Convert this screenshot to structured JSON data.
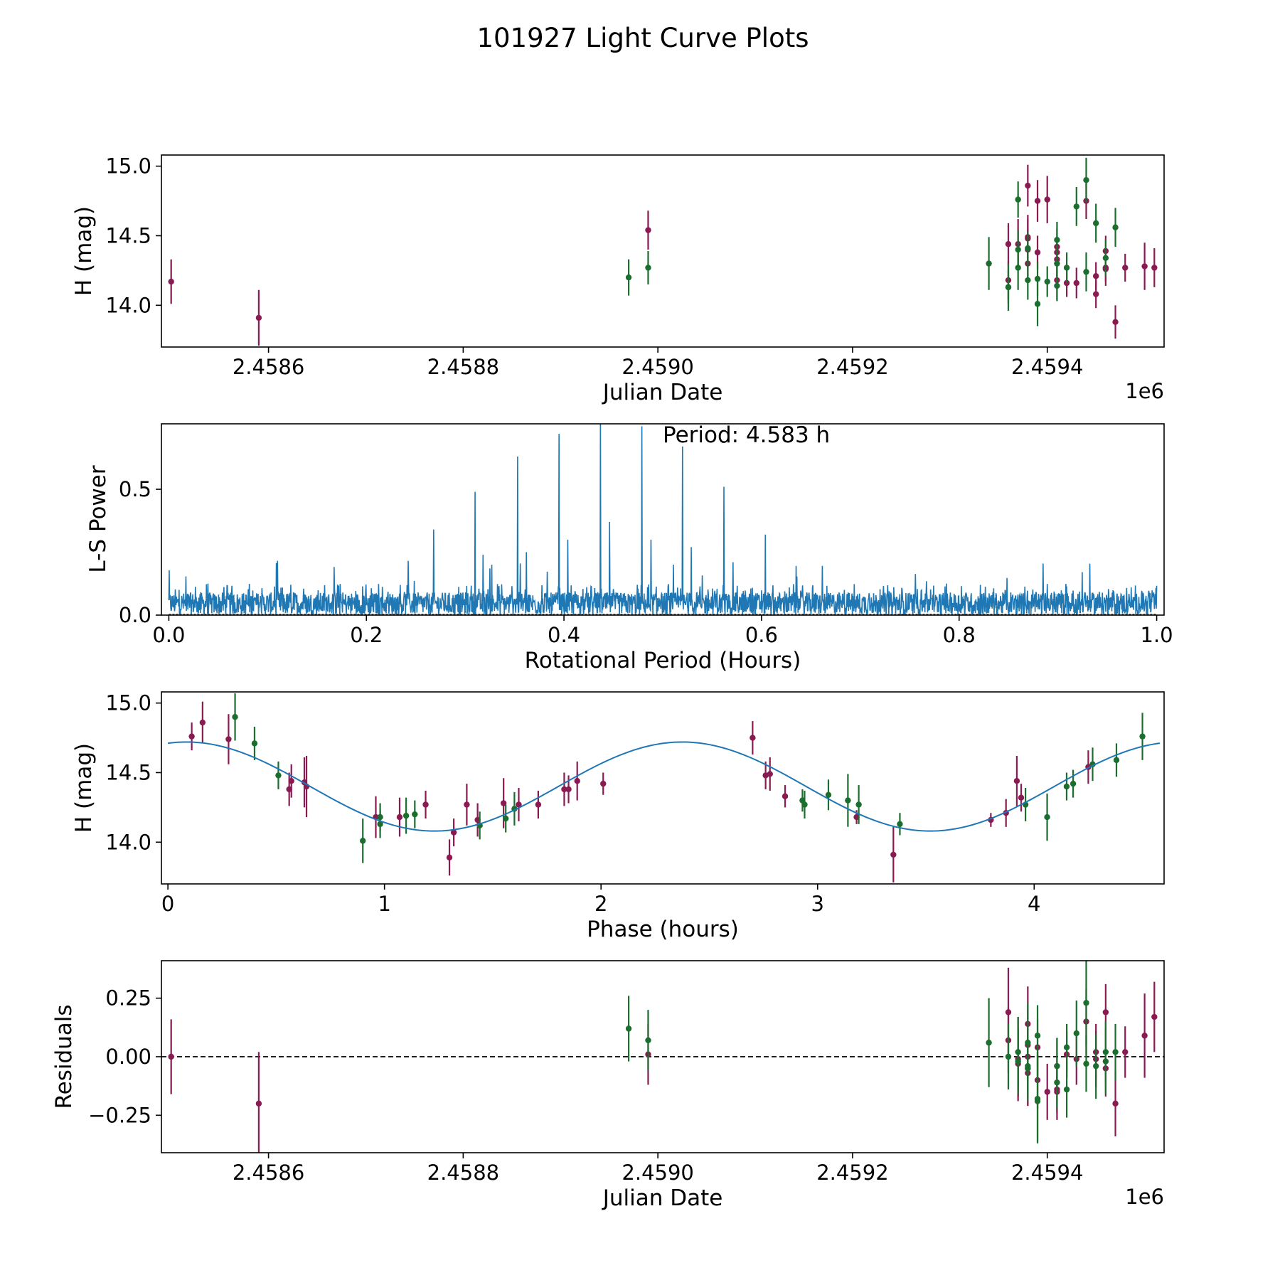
{
  "figure": {
    "title": "101927 Light Curve Plots"
  },
  "colors": {
    "red": "#8a1a52",
    "green": "#1b6e2e",
    "blue": "#1f77b4",
    "axes": "#000000"
  },
  "chart_data": [
    {
      "type": "scatter",
      "name": "observations",
      "xlabel": "Julian Date",
      "ylabel": "H (mag)",
      "offset_label": "1e6",
      "xlim": [
        2.45849,
        2.45952
      ],
      "ylim": [
        13.7,
        15.08
      ],
      "xticks": [
        2.4586,
        2.4588,
        2.459,
        2.4592,
        2.4594
      ],
      "xtick_labels": [
        "2.4586",
        "2.4588",
        "2.4590",
        "2.4592",
        "2.4594"
      ],
      "yticks": [
        14.0,
        14.5,
        15.0
      ],
      "ytick_labels": [
        "14.0",
        "14.5",
        "15.0"
      ],
      "series": [
        {
          "name": "red",
          "color": "#8a1a52",
          "points": [
            [
              2.4585,
              14.17,
              0.16
            ],
            [
              2.45859,
              13.91,
              0.2
            ],
            [
              2.45899,
              14.54,
              0.14
            ],
            [
              2.45936,
              14.44,
              0.15
            ],
            [
              2.45936,
              14.18,
              0.14
            ],
            [
              2.45937,
              14.44,
              0.18
            ],
            [
              2.45938,
              14.4,
              0.14
            ],
            [
              2.45938,
              14.49,
              0.16
            ],
            [
              2.45938,
              14.3,
              0.12
            ],
            [
              2.45938,
              14.86,
              0.15
            ],
            [
              2.45938,
              14.48,
              0.14
            ],
            [
              2.45939,
              14.75,
              0.15
            ],
            [
              2.45939,
              14.38,
              0.12
            ],
            [
              2.4594,
              14.76,
              0.17
            ],
            [
              2.45941,
              14.42,
              0.13
            ],
            [
              2.45941,
              14.33,
              0.12
            ],
            [
              2.45941,
              14.18,
              0.14
            ],
            [
              2.45941,
              14.38,
              0.1
            ],
            [
              2.45942,
              14.16,
              0.1
            ],
            [
              2.45943,
              14.16,
              0.11
            ],
            [
              2.45944,
              14.75,
              0.13
            ],
            [
              2.45945,
              14.08,
              0.1
            ],
            [
              2.45945,
              14.21,
              0.1
            ],
            [
              2.45946,
              14.27,
              0.1
            ],
            [
              2.45946,
              14.39,
              0.11
            ],
            [
              2.45946,
              14.26,
              0.12
            ],
            [
              2.45947,
              13.88,
              0.12
            ],
            [
              2.45948,
              14.27,
              0.1
            ],
            [
              2.4595,
              14.28,
              0.17
            ],
            [
              2.45951,
              14.27,
              0.14
            ]
          ]
        },
        {
          "name": "green",
          "color": "#1b6e2e",
          "points": [
            [
              2.45897,
              14.2,
              0.13
            ],
            [
              2.45899,
              14.27,
              0.12
            ],
            [
              2.45934,
              14.3,
              0.19
            ],
            [
              2.45936,
              14.13,
              0.17
            ],
            [
              2.45936,
              14.13,
              0.12
            ],
            [
              2.45937,
              14.27,
              0.16
            ],
            [
              2.45937,
              14.76,
              0.13
            ],
            [
              2.45937,
              14.4,
              0.14
            ],
            [
              2.45938,
              14.41,
              0.12
            ],
            [
              2.45938,
              14.18,
              0.14
            ],
            [
              2.45939,
              14.01,
              0.16
            ],
            [
              2.45939,
              14.19,
              0.12
            ],
            [
              2.4594,
              14.17,
              0.11
            ],
            [
              2.45941,
              14.3,
              0.12
            ],
            [
              2.45941,
              14.47,
              0.13
            ],
            [
              2.45941,
              14.14,
              0.11
            ],
            [
              2.45942,
              14.27,
              0.11
            ],
            [
              2.45943,
              14.71,
              0.14
            ],
            [
              2.45944,
              14.9,
              0.16
            ],
            [
              2.45944,
              14.24,
              0.14
            ],
            [
              2.45945,
              14.59,
              0.14
            ],
            [
              2.45946,
              14.34,
              0.13
            ],
            [
              2.45947,
              14.56,
              0.14
            ]
          ]
        }
      ]
    },
    {
      "type": "line",
      "name": "periodogram",
      "xlabel": "Rotational Period (Hours)",
      "ylabel": "L-S Power",
      "annotation": "Period: 4.583 h",
      "xlim": [
        -0.0075,
        1.0075
      ],
      "ylim": [
        0,
        0.76
      ],
      "xticks": [
        0.0,
        0.2,
        0.4,
        0.6,
        0.8,
        1.0
      ],
      "xtick_labels": [
        "0.0",
        "0.2",
        "0.4",
        "0.6",
        "0.8",
        "1.0"
      ],
      "yticks": [
        0.0,
        0.5
      ],
      "ytick_labels": [
        "0.0",
        "0.5"
      ],
      "noise_level": 0.09,
      "noise_max": 0.22,
      "peaks": [
        [
          0.268,
          0.34
        ],
        [
          0.31,
          0.49
        ],
        [
          0.318,
          0.24
        ],
        [
          0.327,
          0.2
        ],
        [
          0.353,
          0.63
        ],
        [
          0.362,
          0.25
        ],
        [
          0.395,
          0.72
        ],
        [
          0.404,
          0.3
        ],
        [
          0.437,
          0.76
        ],
        [
          0.446,
          0.37
        ],
        [
          0.479,
          0.75
        ],
        [
          0.488,
          0.3
        ],
        [
          0.52,
          0.67
        ],
        [
          0.529,
          0.27
        ],
        [
          0.562,
          0.51
        ],
        [
          0.571,
          0.21
        ],
        [
          0.604,
          0.32
        ]
      ]
    },
    {
      "type": "scatter",
      "name": "phased",
      "xlabel": "Phase (hours)",
      "ylabel": "H (mag)",
      "xlim": [
        -0.03,
        4.6
      ],
      "ylim": [
        13.7,
        15.08
      ],
      "xticks": [
        0,
        1,
        2,
        3,
        4
      ],
      "xtick_labels": [
        "0",
        "1",
        "2",
        "3",
        "4"
      ],
      "yticks": [
        14.0,
        14.5,
        15.0
      ],
      "ytick_labels": [
        "14.0",
        "14.5",
        "15.0"
      ],
      "model": {
        "mean": 14.4,
        "amplitude": 0.32,
        "period": 2.29,
        "peak_phase": 2.375,
        "x_range": [
          0.0,
          4.58
        ]
      },
      "series": [
        {
          "name": "red",
          "color": "#8a1a52",
          "points": [
            [
              0.11,
              14.76,
              0.1
            ],
            [
              0.16,
              14.86,
              0.15
            ],
            [
              0.28,
              14.74,
              0.18
            ],
            [
              0.56,
              14.38,
              0.12
            ],
            [
              0.57,
              14.44,
              0.12
            ],
            [
              0.63,
              14.43,
              0.18
            ],
            [
              0.64,
              14.4,
              0.22
            ],
            [
              0.96,
              14.18,
              0.15
            ],
            [
              1.07,
              14.18,
              0.14
            ],
            [
              1.19,
              14.27,
              0.1
            ],
            [
              1.3,
              13.89,
              0.13
            ],
            [
              1.32,
              14.07,
              0.1
            ],
            [
              1.38,
              14.27,
              0.15
            ],
            [
              1.43,
              14.16,
              0.12
            ],
            [
              1.55,
              14.28,
              0.18
            ],
            [
              1.62,
              14.27,
              0.12
            ],
            [
              1.71,
              14.27,
              0.1
            ],
            [
              1.83,
              14.38,
              0.12
            ],
            [
              1.85,
              14.38,
              0.1
            ],
            [
              1.89,
              14.44,
              0.14
            ],
            [
              2.01,
              14.42,
              0.08
            ],
            [
              2.7,
              14.75,
              0.12
            ],
            [
              2.76,
              14.48,
              0.1
            ],
            [
              2.78,
              14.49,
              0.12
            ],
            [
              2.85,
              14.33,
              0.08
            ],
            [
              3.18,
              14.18,
              0.05
            ],
            [
              3.35,
              13.91,
              0.2
            ],
            [
              3.8,
              14.16,
              0.05
            ],
            [
              3.87,
              14.21,
              0.1
            ],
            [
              3.92,
              14.44,
              0.18
            ],
            [
              3.94,
              14.32,
              0.1
            ],
            [
              4.25,
              14.54,
              0.12
            ]
          ]
        },
        {
          "name": "green",
          "color": "#1b6e2e",
          "points": [
            [
              0.31,
              14.9,
              0.17
            ],
            [
              0.4,
              14.71,
              0.12
            ],
            [
              0.51,
              14.48,
              0.1
            ],
            [
              0.9,
              14.01,
              0.16
            ],
            [
              0.98,
              14.18,
              0.1
            ],
            [
              0.98,
              14.13,
              0.1
            ],
            [
              1.1,
              14.19,
              0.13
            ],
            [
              1.14,
              14.2,
              0.1
            ],
            [
              1.44,
              14.12,
              0.1
            ],
            [
              1.56,
              14.17,
              0.1
            ],
            [
              1.6,
              14.24,
              0.12
            ],
            [
              2.93,
              14.3,
              0.08
            ],
            [
              2.94,
              14.27,
              0.1
            ],
            [
              3.05,
              14.34,
              0.11
            ],
            [
              3.14,
              14.3,
              0.19
            ],
            [
              3.19,
              14.27,
              0.14
            ],
            [
              3.38,
              14.13,
              0.08
            ],
            [
              3.96,
              14.27,
              0.12
            ],
            [
              4.06,
              14.18,
              0.17
            ],
            [
              4.15,
              14.4,
              0.1
            ],
            [
              4.18,
              14.42,
              0.1
            ],
            [
              4.27,
              14.56,
              0.12
            ],
            [
              4.38,
              14.59,
              0.12
            ],
            [
              4.5,
              14.76,
              0.17
            ]
          ]
        }
      ]
    },
    {
      "type": "scatter",
      "name": "residuals",
      "xlabel": "Julian Date",
      "ylabel": "Residuals",
      "offset_label": "1e6",
      "xlim": [
        2.45849,
        2.45952
      ],
      "ylim": [
        -0.41,
        0.41
      ],
      "xticks": [
        2.4586,
        2.4588,
        2.459,
        2.4592,
        2.4594
      ],
      "xtick_labels": [
        "2.4586",
        "2.4588",
        "2.4590",
        "2.4592",
        "2.4594"
      ],
      "yticks": [
        -0.25,
        0.0,
        0.25
      ],
      "ytick_labels": [
        "−0.25",
        "0.00",
        "0.25"
      ],
      "reference_line": 0.0,
      "series": [
        {
          "name": "red",
          "color": "#8a1a52",
          "points": [
            [
              2.4585,
              0.0,
              0.16
            ],
            [
              2.45859,
              -0.2,
              0.22
            ],
            [
              2.45899,
              0.01,
              0.13
            ],
            [
              2.45936,
              0.19,
              0.19
            ],
            [
              2.45936,
              0.07,
              0.14
            ],
            [
              2.45937,
              -0.03,
              0.14
            ],
            [
              2.45937,
              -0.01,
              0.18
            ],
            [
              2.45938,
              -0.05,
              0.16
            ],
            [
              2.45938,
              0.0,
              0.14
            ],
            [
              2.45938,
              0.14,
              0.16
            ],
            [
              2.45938,
              -0.07,
              0.14
            ],
            [
              2.45938,
              0.05,
              0.15
            ],
            [
              2.45939,
              -0.1,
              0.12
            ],
            [
              2.45939,
              0.04,
              0.12
            ],
            [
              2.4594,
              -0.15,
              0.12
            ],
            [
              2.45941,
              -0.15,
              0.12
            ],
            [
              2.45941,
              -0.14,
              0.1
            ],
            [
              2.45941,
              -0.04,
              0.12
            ],
            [
              2.45942,
              0.01,
              0.1
            ],
            [
              2.45943,
              -0.01,
              0.11
            ],
            [
              2.45944,
              0.15,
              0.14
            ],
            [
              2.45945,
              -0.01,
              0.12
            ],
            [
              2.45945,
              0.02,
              0.12
            ],
            [
              2.45946,
              0.19,
              0.12
            ],
            [
              2.45946,
              -0.05,
              0.12
            ],
            [
              2.45947,
              -0.2,
              0.14
            ],
            [
              2.45948,
              0.02,
              0.11
            ],
            [
              2.4595,
              0.09,
              0.18
            ],
            [
              2.45951,
              0.17,
              0.15
            ]
          ]
        },
        {
          "name": "green",
          "color": "#1b6e2e",
          "points": [
            [
              2.45897,
              0.12,
              0.14
            ],
            [
              2.45899,
              0.07,
              0.13
            ],
            [
              2.45934,
              0.06,
              0.19
            ],
            [
              2.45936,
              0.0,
              0.14
            ],
            [
              2.45937,
              -0.02,
              0.14
            ],
            [
              2.45937,
              0.02,
              0.15
            ],
            [
              2.45938,
              0.06,
              0.17
            ],
            [
              2.45938,
              -0.05,
              0.14
            ],
            [
              2.45938,
              -0.04,
              0.12
            ],
            [
              2.45939,
              -0.18,
              0.19
            ],
            [
              2.45939,
              -0.19,
              0.17
            ],
            [
              2.45939,
              0.09,
              0.13
            ],
            [
              2.45941,
              -0.11,
              0.11
            ],
            [
              2.45941,
              -0.04,
              0.12
            ],
            [
              2.45942,
              0.04,
              0.1
            ],
            [
              2.45942,
              -0.14,
              0.12
            ],
            [
              2.45943,
              0.1,
              0.14
            ],
            [
              2.45944,
              0.23,
              0.18
            ],
            [
              2.45944,
              -0.03,
              0.12
            ],
            [
              2.45945,
              -0.04,
              0.14
            ],
            [
              2.45946,
              0.02,
              0.13
            ],
            [
              2.45946,
              -0.02,
              0.14
            ],
            [
              2.45947,
              0.02,
              0.12
            ]
          ]
        }
      ]
    }
  ]
}
